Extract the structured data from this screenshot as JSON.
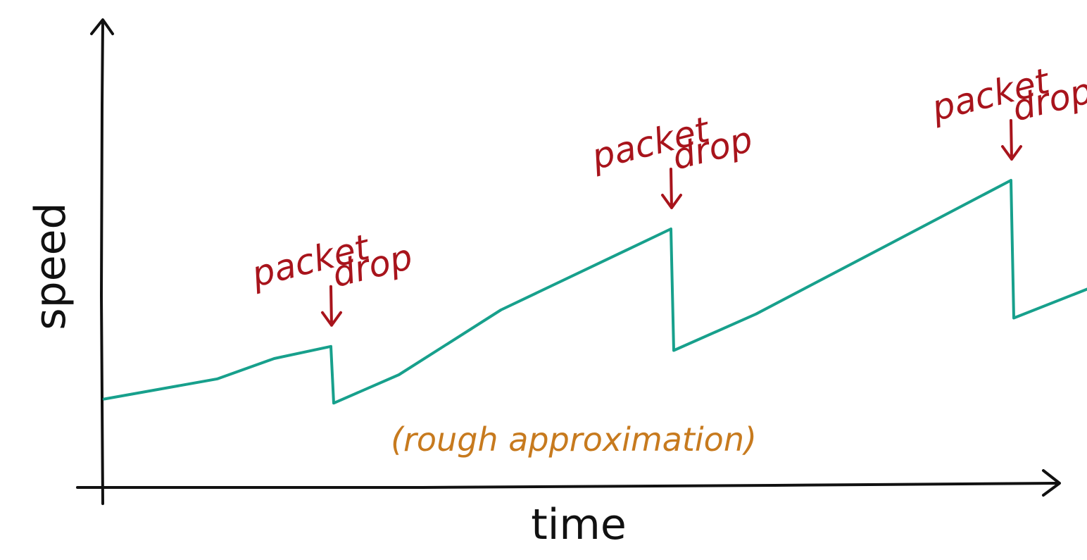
{
  "chart_data": {
    "type": "line",
    "title": "",
    "xlabel": "time",
    "ylabel": "speed",
    "axis_ticks": "none",
    "grid": false,
    "legend": "none",
    "note": "(rough approximation)",
    "series": [
      {
        "x": [
          0,
          2,
          3,
          4,
          4.05,
          5.2,
          7,
          10,
          10.05,
          11.5,
          16,
          16.05,
          17.5
        ],
        "y": [
          1.8,
          2.3,
          2.8,
          3.1,
          1.7,
          2.4,
          4.0,
          6.0,
          3.0,
          3.9,
          7.2,
          3.8,
          4.6
        ]
      }
    ],
    "annotations": [
      {
        "line1": "packet",
        "line2": "drop",
        "x": 4,
        "y": 3.1
      },
      {
        "line1": "packet",
        "line2": "drop",
        "x": 10,
        "y": 6.0
      },
      {
        "line1": "packet",
        "line2": "drop",
        "x": 16,
        "y": 7.2
      }
    ],
    "colors": {
      "axes": "#111111",
      "line": "#17a08c",
      "annotation": "#a8141c",
      "note": "#c77a1e"
    }
  }
}
